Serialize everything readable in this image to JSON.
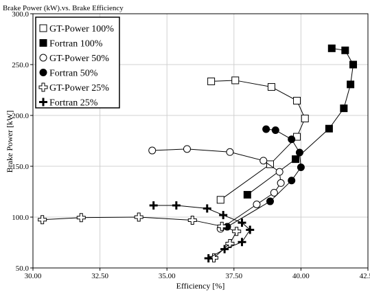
{
  "chart_data": {
    "type": "scatter",
    "title": "Brake Power (kW).vs. Brake Efficiency",
    "xlabel": "Efficiency [%]",
    "ylabel": "Brake Power [kW]",
    "xlim": [
      30.0,
      42.5
    ],
    "ylim": [
      50.0,
      300.0
    ],
    "x_ticks": [
      "30.00",
      "32.50",
      "35.00",
      "37.50",
      "40.00",
      "42.50"
    ],
    "y_ticks": [
      "50.0",
      "100.0",
      "150.0",
      "200.0",
      "250.0",
      "300.0"
    ],
    "grid": true,
    "legend_position": "top-left",
    "series": [
      {
        "name": "GT-Power 100%",
        "marker": "square-open",
        "line": true,
        "x": [
          36.65,
          37.55,
          38.9,
          39.85,
          40.15,
          39.85,
          38.85,
          37.0
        ],
        "y": [
          233.5,
          234.5,
          228.0,
          214.5,
          197.0,
          179.0,
          152.0,
          117.0
        ]
      },
      {
        "name": "Fortran 100%",
        "marker": "square-filled",
        "line": true,
        "x": [
          41.15,
          41.65,
          41.95,
          41.85,
          41.6,
          41.05,
          39.8,
          38.0
        ],
        "y": [
          266.0,
          264.0,
          250.0,
          230.5,
          207.0,
          187.0,
          157.0,
          122.0
        ]
      },
      {
        "name": "GT-Power 50%",
        "marker": "circle-open",
        "line": true,
        "x": [
          34.45,
          35.75,
          37.35,
          38.6,
          39.2,
          39.25,
          39.0,
          38.35,
          37.0
        ],
        "y": [
          165.5,
          167.0,
          164.0,
          155.5,
          144.5,
          133.5,
          124.0,
          112.5,
          88.5
        ]
      },
      {
        "name": "Fortran 50%",
        "marker": "circle-filled",
        "line": true,
        "x": [
          38.7,
          39.05,
          39.65,
          39.95,
          40.0,
          39.65,
          38.85,
          37.25
        ],
        "y": [
          186.5,
          185.5,
          176.5,
          163.5,
          149.0,
          136.0,
          115.5,
          90.5
        ]
      },
      {
        "name": "GT-Power 25%",
        "marker": "plus-open",
        "line": true,
        "x": [
          30.35,
          31.8,
          33.95,
          35.95,
          37.05,
          37.6,
          37.35,
          36.75
        ],
        "y": [
          97.5,
          99.5,
          100.0,
          97.0,
          91.0,
          86.0,
          74.0,
          60.0
        ]
      },
      {
        "name": "Fortran 25%",
        "marker": "plus-filled",
        "line": true,
        "x": [
          34.5,
          35.35,
          36.5,
          37.1,
          37.8,
          38.1,
          37.8,
          37.15,
          36.55
        ],
        "y": [
          111.5,
          111.5,
          108.5,
          102.0,
          94.5,
          87.5,
          75.5,
          68.5,
          59.5
        ]
      }
    ]
  }
}
